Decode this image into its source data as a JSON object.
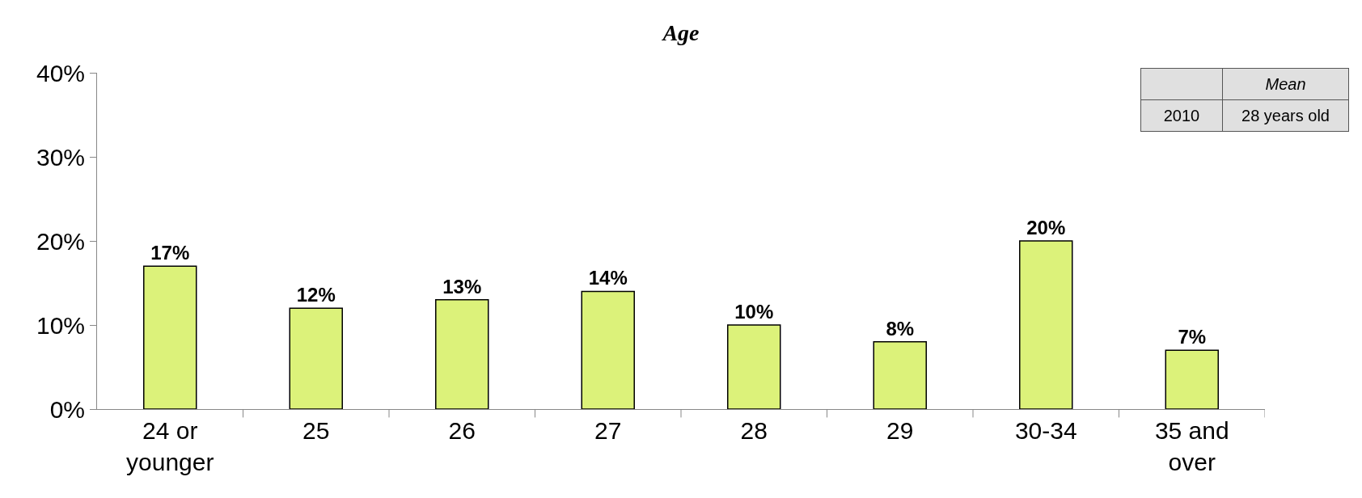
{
  "chart_data": {
    "type": "bar",
    "title": "Age",
    "categories": [
      "24 or younger",
      "25",
      "26",
      "27",
      "28",
      "29",
      "30-34",
      "35 and over"
    ],
    "values": [
      17,
      12,
      13,
      14,
      10,
      8,
      20,
      7
    ],
    "value_labels": [
      "17%",
      "12%",
      "13%",
      "14%",
      "10%",
      "8%",
      "20%",
      "7%"
    ],
    "color": "#dcf27a",
    "ylim": [
      0,
      40
    ],
    "yticks": [
      {
        "value": 0,
        "label": "0%"
      },
      {
        "value": 10,
        "label": "10%"
      },
      {
        "value": 20,
        "label": "20%"
      },
      {
        "value": 30,
        "label": "30%"
      },
      {
        "value": 40,
        "label": "40%"
      }
    ],
    "grid": false,
    "annotations": [
      "Mean",
      "2010",
      "28 years old"
    ]
  }
}
